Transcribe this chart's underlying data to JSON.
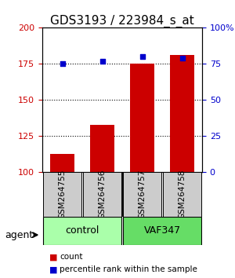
{
  "title": "GDS3193 / 223984_s_at",
  "samples": [
    "GSM264755",
    "GSM264756",
    "GSM264757",
    "GSM264758"
  ],
  "counts": [
    113,
    133,
    175,
    181
  ],
  "percentiles": [
    75,
    77,
    80,
    79
  ],
  "ylim_left": [
    100,
    200
  ],
  "ylim_right": [
    0,
    100
  ],
  "yticks_left": [
    100,
    125,
    150,
    175,
    200
  ],
  "yticks_right": [
    0,
    25,
    50,
    75,
    100
  ],
  "bar_color": "#cc0000",
  "dot_color": "#0000cc",
  "bar_bottom": 100,
  "groups": [
    {
      "label": "control",
      "samples": [
        0,
        1
      ],
      "color": "#aaffaa"
    },
    {
      "label": "VAF347",
      "samples": [
        2,
        3
      ],
      "color": "#66dd66"
    }
  ],
  "agent_label": "agent",
  "legend_count_label": "count",
  "legend_pct_label": "percentile rank within the sample",
  "grid_color": "#000000",
  "tick_color_left": "#cc0000",
  "tick_color_right": "#0000cc",
  "sample_box_color": "#cccccc",
  "title_fontsize": 11,
  "axis_label_fontsize": 9,
  "sample_label_fontsize": 7.5
}
